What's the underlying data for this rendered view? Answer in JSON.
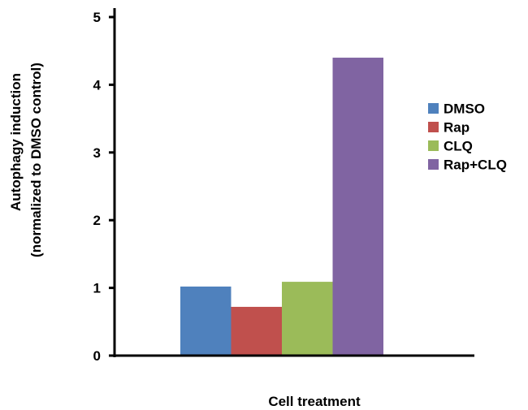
{
  "chart_data": {
    "type": "bar",
    "xlabel": "Cell treatment",
    "ylabel_lines": [
      "Autophagy induction",
      "(normalized to DMSO control)"
    ],
    "ylim": [
      0,
      5
    ],
    "yticks": [
      0,
      1,
      2,
      3,
      4,
      5
    ],
    "grid": false,
    "legend_position": "right",
    "series": [
      {
        "name": "DMSO",
        "value": 1.02,
        "color": "#4f81bd"
      },
      {
        "name": "Rap",
        "value": 0.72,
        "color": "#c0504d"
      },
      {
        "name": "CLQ",
        "value": 1.09,
        "color": "#9bbb59"
      },
      {
        "name": "Rap+CLQ",
        "value": 4.4,
        "color": "#8064a2"
      }
    ]
  }
}
